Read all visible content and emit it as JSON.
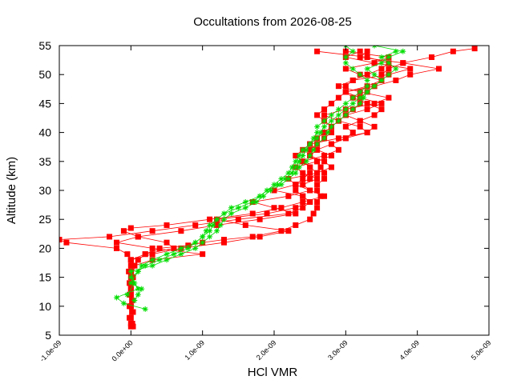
{
  "chart_data": {
    "type": "line",
    "title": "Occultations from 2026-08-25",
    "xlabel": "HCl VMR",
    "ylabel": "Altitude (km)",
    "xlim": [
      -1e-09,
      5e-09
    ],
    "ylim": [
      5,
      55
    ],
    "xticks": [
      -1e-09,
      0,
      1e-09,
      2e-09,
      3e-09,
      4e-09,
      5e-09
    ],
    "xtick_labels": [
      "-1.0e-09",
      "0.0e+00",
      "1.0e-09",
      "2.0e-09",
      "3.0e-09",
      "4.0e-09",
      "5.0e-09"
    ],
    "yticks": [
      5,
      10,
      15,
      20,
      25,
      30,
      35,
      40,
      45,
      50,
      55
    ],
    "ytick_labels": [
      "5",
      "10",
      "15",
      "20",
      "25",
      "30",
      "35",
      "40",
      "45",
      "50",
      "55"
    ],
    "grid": false,
    "legend": "none",
    "series": [
      {
        "color": "#ff0000",
        "marker": "square",
        "profiles": [
          {
            "altitude": [
              6.5,
              8,
              10,
              12,
              14,
              16,
              17,
              18,
              19,
              20,
              20.5,
              21,
              21.5,
              22,
              23,
              24,
              25,
              26,
              27,
              28,
              29,
              30,
              31,
              32,
              33,
              34,
              35,
              36,
              37,
              38,
              39,
              40,
              41,
              42,
              43,
              44,
              45,
              46,
              47,
              48,
              49,
              50,
              51,
              52,
              53,
              54,
              54.5
            ],
            "vmr": [
              0.0,
              0.0,
              0.0,
              0.0,
              0.0,
              0.0,
              5e-11,
              1e-10,
              2e-10,
              4e-10,
              8e-10,
              1e-09,
              1.3e-09,
              1.7e-09,
              2.1e-09,
              2.3e-09,
              2.5e-09,
              2.55e-09,
              2.6e-09,
              2.6e-09,
              2.65e-09,
              2.6e-09,
              2.6e-09,
              2.7e-09,
              2.7e-09,
              2.65e-09,
              2.6e-09,
              2.5e-09,
              2.5e-09,
              2.6e-09,
              2.7e-09,
              2.8e-09,
              2.8e-09,
              2.9e-09,
              3e-09,
              3.1e-09,
              3.2e-09,
              3.2e-09,
              3.3e-09,
              3.4e-09,
              3.5e-09,
              3.5e-09,
              3.6e-09,
              3.8e-09,
              4.2e-09,
              4.5e-09,
              4.8e-09
            ]
          },
          {
            "altitude": [
              7,
              9,
              11,
              13,
              15,
              17,
              18,
              19,
              20,
              21,
              21.5,
              22,
              23,
              24,
              25,
              26,
              27,
              28,
              29,
              30,
              31,
              32,
              33,
              34,
              35,
              36,
              37,
              38,
              39,
              40,
              41,
              42,
              43,
              44,
              45,
              46,
              47,
              48,
              49,
              50,
              51,
              52,
              53,
              54
            ],
            "vmr": [
              2e-11,
              2e-11,
              2e-11,
              0.0,
              0.0,
              0.0,
              0.0,
              -5e-11,
              -2e-10,
              -9e-10,
              -1e-09,
              -3e-10,
              3e-10,
              9e-10,
              1.5e-09,
              2.2e-09,
              2.4e-09,
              2.5e-09,
              2.4e-09,
              2.3e-09,
              2.3e-09,
              2.4e-09,
              2.5e-09,
              2.5e-09,
              2.4e-09,
              2.3e-09,
              2.4e-09,
              2.5e-09,
              2.6e-09,
              2.7e-09,
              2.8e-09,
              2.7e-09,
              2.6e-09,
              2.7e-09,
              2.8e-09,
              2.9e-09,
              3e-09,
              3e-09,
              3.1e-09,
              3.3e-09,
              3.5e-09,
              3.6e-09,
              3.3e-09,
              2.6e-09
            ]
          },
          {
            "altitude": [
              8,
              10,
              12,
              14,
              16,
              18,
              19,
              20,
              21,
              22,
              23,
              23.5,
              24,
              25,
              26,
              27,
              28,
              29,
              30,
              31,
              32,
              33,
              34,
              35,
              36,
              37,
              38,
              39,
              40,
              41,
              42,
              43,
              44,
              45,
              46,
              47,
              48,
              49,
              50,
              51,
              52,
              53,
              54
            ],
            "vmr": [
              -2e-11,
              -2e-11,
              -2e-11,
              -2e-11,
              0.0,
              0.0,
              2e-10,
              6e-10,
              5e-10,
              1e-10,
              -1e-10,
              0.0,
              5e-10,
              1.1e-09,
              1.7e-09,
              2.1e-09,
              2.4e-09,
              2.7e-09,
              2.5e-09,
              2.3e-09,
              2.2e-09,
              2.6e-09,
              2.8e-09,
              2.7e-09,
              2.5e-09,
              2.6e-09,
              2.8e-09,
              3e-09,
              3.1e-09,
              3e-09,
              3.2e-09,
              3.4e-09,
              3.5e-09,
              3.3e-09,
              3.1e-09,
              3e-09,
              3.4e-09,
              3.7e-09,
              3.9e-09,
              4.3e-09,
              3.8e-09,
              3.2e-09,
              3.3e-09
            ]
          },
          {
            "altitude": [
              6.5,
              9,
              12,
              15,
              17,
              18,
              19,
              20,
              21,
              22,
              23,
              24,
              25,
              26,
              27,
              28,
              29,
              30,
              31,
              32,
              33,
              34,
              35,
              36,
              37,
              38,
              39,
              40,
              41,
              42,
              43,
              44,
              45,
              46,
              47,
              48,
              49,
              50,
              51,
              52,
              53,
              54
            ],
            "vmr": [
              3e-11,
              3e-11,
              0.0,
              3e-11,
              5e-11,
              3e-10,
              1e-09,
              3e-10,
              -2e-10,
              1e-10,
              7e-10,
              1.2e-09,
              1.8e-09,
              2.3e-09,
              2e-09,
              1.7e-09,
              2.2e-09,
              2.5e-09,
              2.4e-09,
              2.6e-09,
              2.4e-09,
              2.3e-09,
              2.6e-09,
              2.8e-09,
              2.6e-09,
              2.5e-09,
              2.9e-09,
              3.3e-09,
              3.2e-09,
              2.9e-09,
              2.7e-09,
              3e-09,
              3.4e-09,
              3.6e-09,
              3.2e-09,
              2.9e-09,
              3.1e-09,
              3.6e-09,
              3.9e-09,
              3.4e-09,
              3e-09,
              3.2e-09
            ]
          },
          {
            "altitude": [
              7,
              10,
              13,
              16,
              18,
              19,
              20,
              21,
              22,
              23,
              24,
              25,
              26,
              27,
              28,
              29,
              30,
              31,
              32,
              33,
              34,
              35,
              36,
              37,
              38,
              39,
              40,
              41,
              42,
              43,
              44,
              45,
              46,
              47,
              48,
              49,
              50,
              51,
              52,
              53,
              54
            ],
            "vmr": [
              0.0,
              0.0,
              0.0,
              -3e-11,
              0.0,
              3e-10,
              7e-10,
              1.3e-09,
              1.8e-09,
              2.2e-09,
              1.6e-09,
              1.2e-09,
              1.9e-09,
              2.3e-09,
              2.5e-09,
              2.4e-09,
              2e-09,
              2.3e-09,
              2.5e-09,
              2.6e-09,
              2.5e-09,
              2.4e-09,
              2.7e-09,
              2.9e-09,
              2.8e-09,
              3e-09,
              3.3e-09,
              3.4e-09,
              3.2e-09,
              3e-09,
              3.3e-09,
              3.5e-09,
              3.2e-09,
              3e-09,
              3.3e-09,
              3.5e-09,
              3.2e-09,
              3e-09,
              3.4e-09,
              3.6e-09,
              3e-09
            ]
          }
        ]
      },
      {
        "color": "#00dd00",
        "marker": "star",
        "profiles": [
          {
            "altitude": [
              9.5,
              10.5,
              11.5,
              13,
              15,
              16,
              17,
              18,
              19,
              20,
              21,
              22,
              23,
              24,
              25,
              26,
              27,
              28,
              29,
              30,
              31,
              32,
              33,
              34,
              35,
              36,
              37,
              38,
              39,
              40,
              41,
              42,
              43,
              44,
              45,
              46,
              47,
              48,
              49,
              50,
              51,
              52,
              53,
              54,
              55
            ],
            "vmr": [
              2e-10,
              -1e-10,
              -2e-10,
              1e-10,
              0.0,
              1e-10,
              1.5e-10,
              3e-10,
              5e-10,
              7e-10,
              9e-10,
              1e-09,
              1.05e-09,
              1.1e-09,
              1.2e-09,
              1.3e-09,
              1.4e-09,
              1.6e-09,
              1.8e-09,
              1.9e-09,
              2e-09,
              2.1e-09,
              2.2e-09,
              2.25e-09,
              2.3e-09,
              2.35e-09,
              2.4e-09,
              2.5e-09,
              2.55e-09,
              2.6e-09,
              2.6e-09,
              2.7e-09,
              2.8e-09,
              2.9e-09,
              3e-09,
              3.1e-09,
              3.2e-09,
              3.3e-09,
              3.3e-09,
              3.2e-09,
              3.1e-09,
              3e-09,
              3e-09,
              3.1e-09,
              3e-09
            ]
          },
          {
            "altitude": [
              11,
              12,
              13,
              14,
              16,
              17,
              18,
              19,
              20,
              21,
              22,
              23,
              24,
              25,
              26,
              27,
              28,
              29,
              30,
              31,
              32,
              33,
              34,
              35,
              36,
              37,
              38,
              39,
              40,
              41,
              42,
              43,
              44,
              45,
              46,
              47,
              48,
              49,
              50,
              51,
              52,
              53,
              54
            ],
            "vmr": [
              5e-11,
              1e-10,
              1.5e-10,
              0.0,
              1e-10,
              2e-10,
              4e-10,
              6e-10,
              8e-10,
              9e-10,
              1e-09,
              1.1e-09,
              1.15e-09,
              1.2e-09,
              1.3e-09,
              1.5e-09,
              1.7e-09,
              1.8e-09,
              1.9e-09,
              2.05e-09,
              2.15e-09,
              2.25e-09,
              2.3e-09,
              2.35e-09,
              2.4e-09,
              2.45e-09,
              2.5e-09,
              2.6e-09,
              2.65e-09,
              2.7e-09,
              2.8e-09,
              2.9e-09,
              3e-09,
              3.1e-09,
              3.2e-09,
              3.3e-09,
              3.4e-09,
              3.5e-09,
              3.6e-09,
              3.7e-09,
              3.6e-09,
              3.5e-09,
              3.7e-09
            ]
          },
          {
            "altitude": [
              12,
              14,
              16,
              17,
              18,
              19,
              20,
              21,
              22,
              23,
              24,
              25,
              26,
              27,
              28,
              29,
              30,
              31,
              32,
              33,
              34,
              35,
              36,
              37,
              38,
              39,
              40,
              41,
              42,
              43,
              44,
              45,
              46,
              47,
              48,
              49,
              50,
              51,
              52,
              53,
              54,
              55
            ],
            "vmr": [
              -5e-11,
              5e-11,
              0.0,
              3e-10,
              5e-10,
              7e-10,
              9e-10,
              1e-09,
              1.1e-09,
              1.2e-09,
              1.25e-09,
              1.3e-09,
              1.4e-09,
              1.6e-09,
              1.75e-09,
              1.85e-09,
              1.95e-09,
              2.1e-09,
              2.2e-09,
              2.3e-09,
              2.35e-09,
              2.45e-09,
              2.5e-09,
              2.55e-09,
              2.6e-09,
              2.7e-09,
              2.75e-09,
              2.8e-09,
              2.9e-09,
              3e-09,
              3.1e-09,
              3.2e-09,
              3.25e-09,
              3.3e-09,
              3.4e-09,
              3.5e-09,
              3.4e-09,
              3.3e-09,
              3.5e-09,
              3.6e-09,
              3.8e-09,
              3.4e-09
            ]
          }
        ]
      }
    ]
  }
}
